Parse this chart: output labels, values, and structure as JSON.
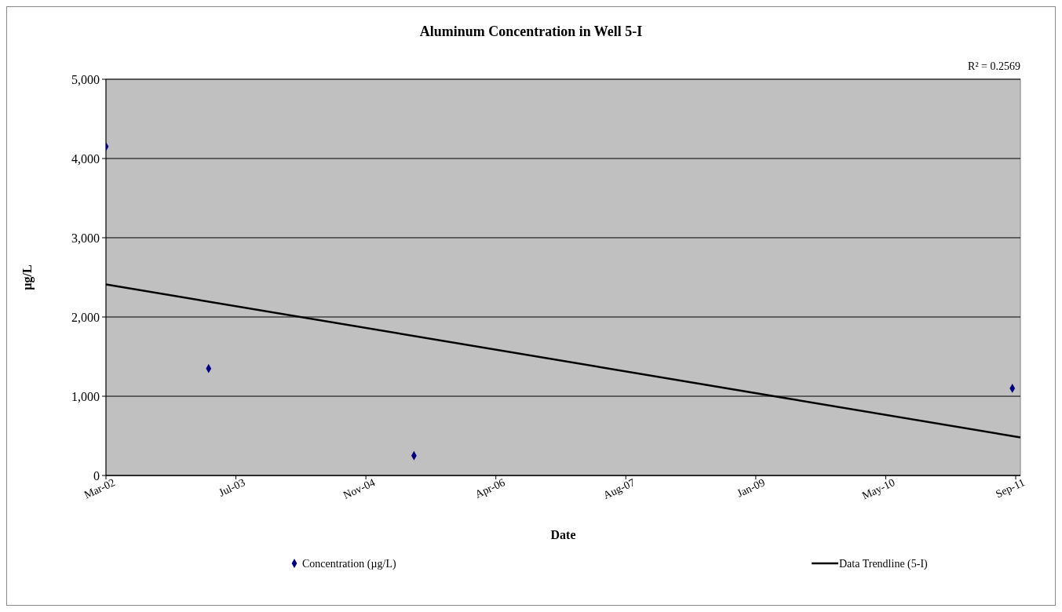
{
  "chart_data": {
    "type": "scatter",
    "title": "Aluminum Concentration in Well 5-I",
    "xlabel": "Date",
    "ylabel": "µg/L",
    "annotations": [
      "R² = 0.2569"
    ],
    "xlim": [
      "2002-03-01",
      "2011-10-18"
    ],
    "xticks": [
      {
        "value": "2002-03-01",
        "label": "Mar-02"
      },
      {
        "value": "2003-07-14",
        "label": "Jul-03"
      },
      {
        "value": "2004-11-25",
        "label": "Nov-04"
      },
      {
        "value": "2006-04-09",
        "label": "Apr-06"
      },
      {
        "value": "2007-08-22",
        "label": "Aug-07"
      },
      {
        "value": "2009-01-03",
        "label": "Jan-09"
      },
      {
        "value": "2010-05-18",
        "label": "May-10"
      },
      {
        "value": "2011-09-30",
        "label": "Sep-11"
      }
    ],
    "ylim": [
      0,
      5000
    ],
    "yticks": [
      {
        "value": 0,
        "label": "0"
      },
      {
        "value": 1000,
        "label": "1,000"
      },
      {
        "value": 2000,
        "label": "2,000"
      },
      {
        "value": 3000,
        "label": "3,000"
      },
      {
        "value": 4000,
        "label": "4,000"
      },
      {
        "value": 5000,
        "label": "5,000"
      }
    ],
    "grid": "y",
    "legend": "bottom",
    "series": [
      {
        "name": "Concentration (µg/L)",
        "marker": "diamond",
        "color": "#000080",
        "x": [
          "2002-03-01",
          "2003-03-31",
          "2005-05-29",
          "2011-09-17"
        ],
        "values": [
          4150,
          1350,
          250,
          1100
        ]
      },
      {
        "name": "Data Trendline (5-I)",
        "type": "line",
        "color": "#000000",
        "line_style": "solid",
        "x": [
          "2002-03-01",
          "2011-10-18"
        ],
        "values": [
          2410,
          480
        ]
      }
    ]
  }
}
